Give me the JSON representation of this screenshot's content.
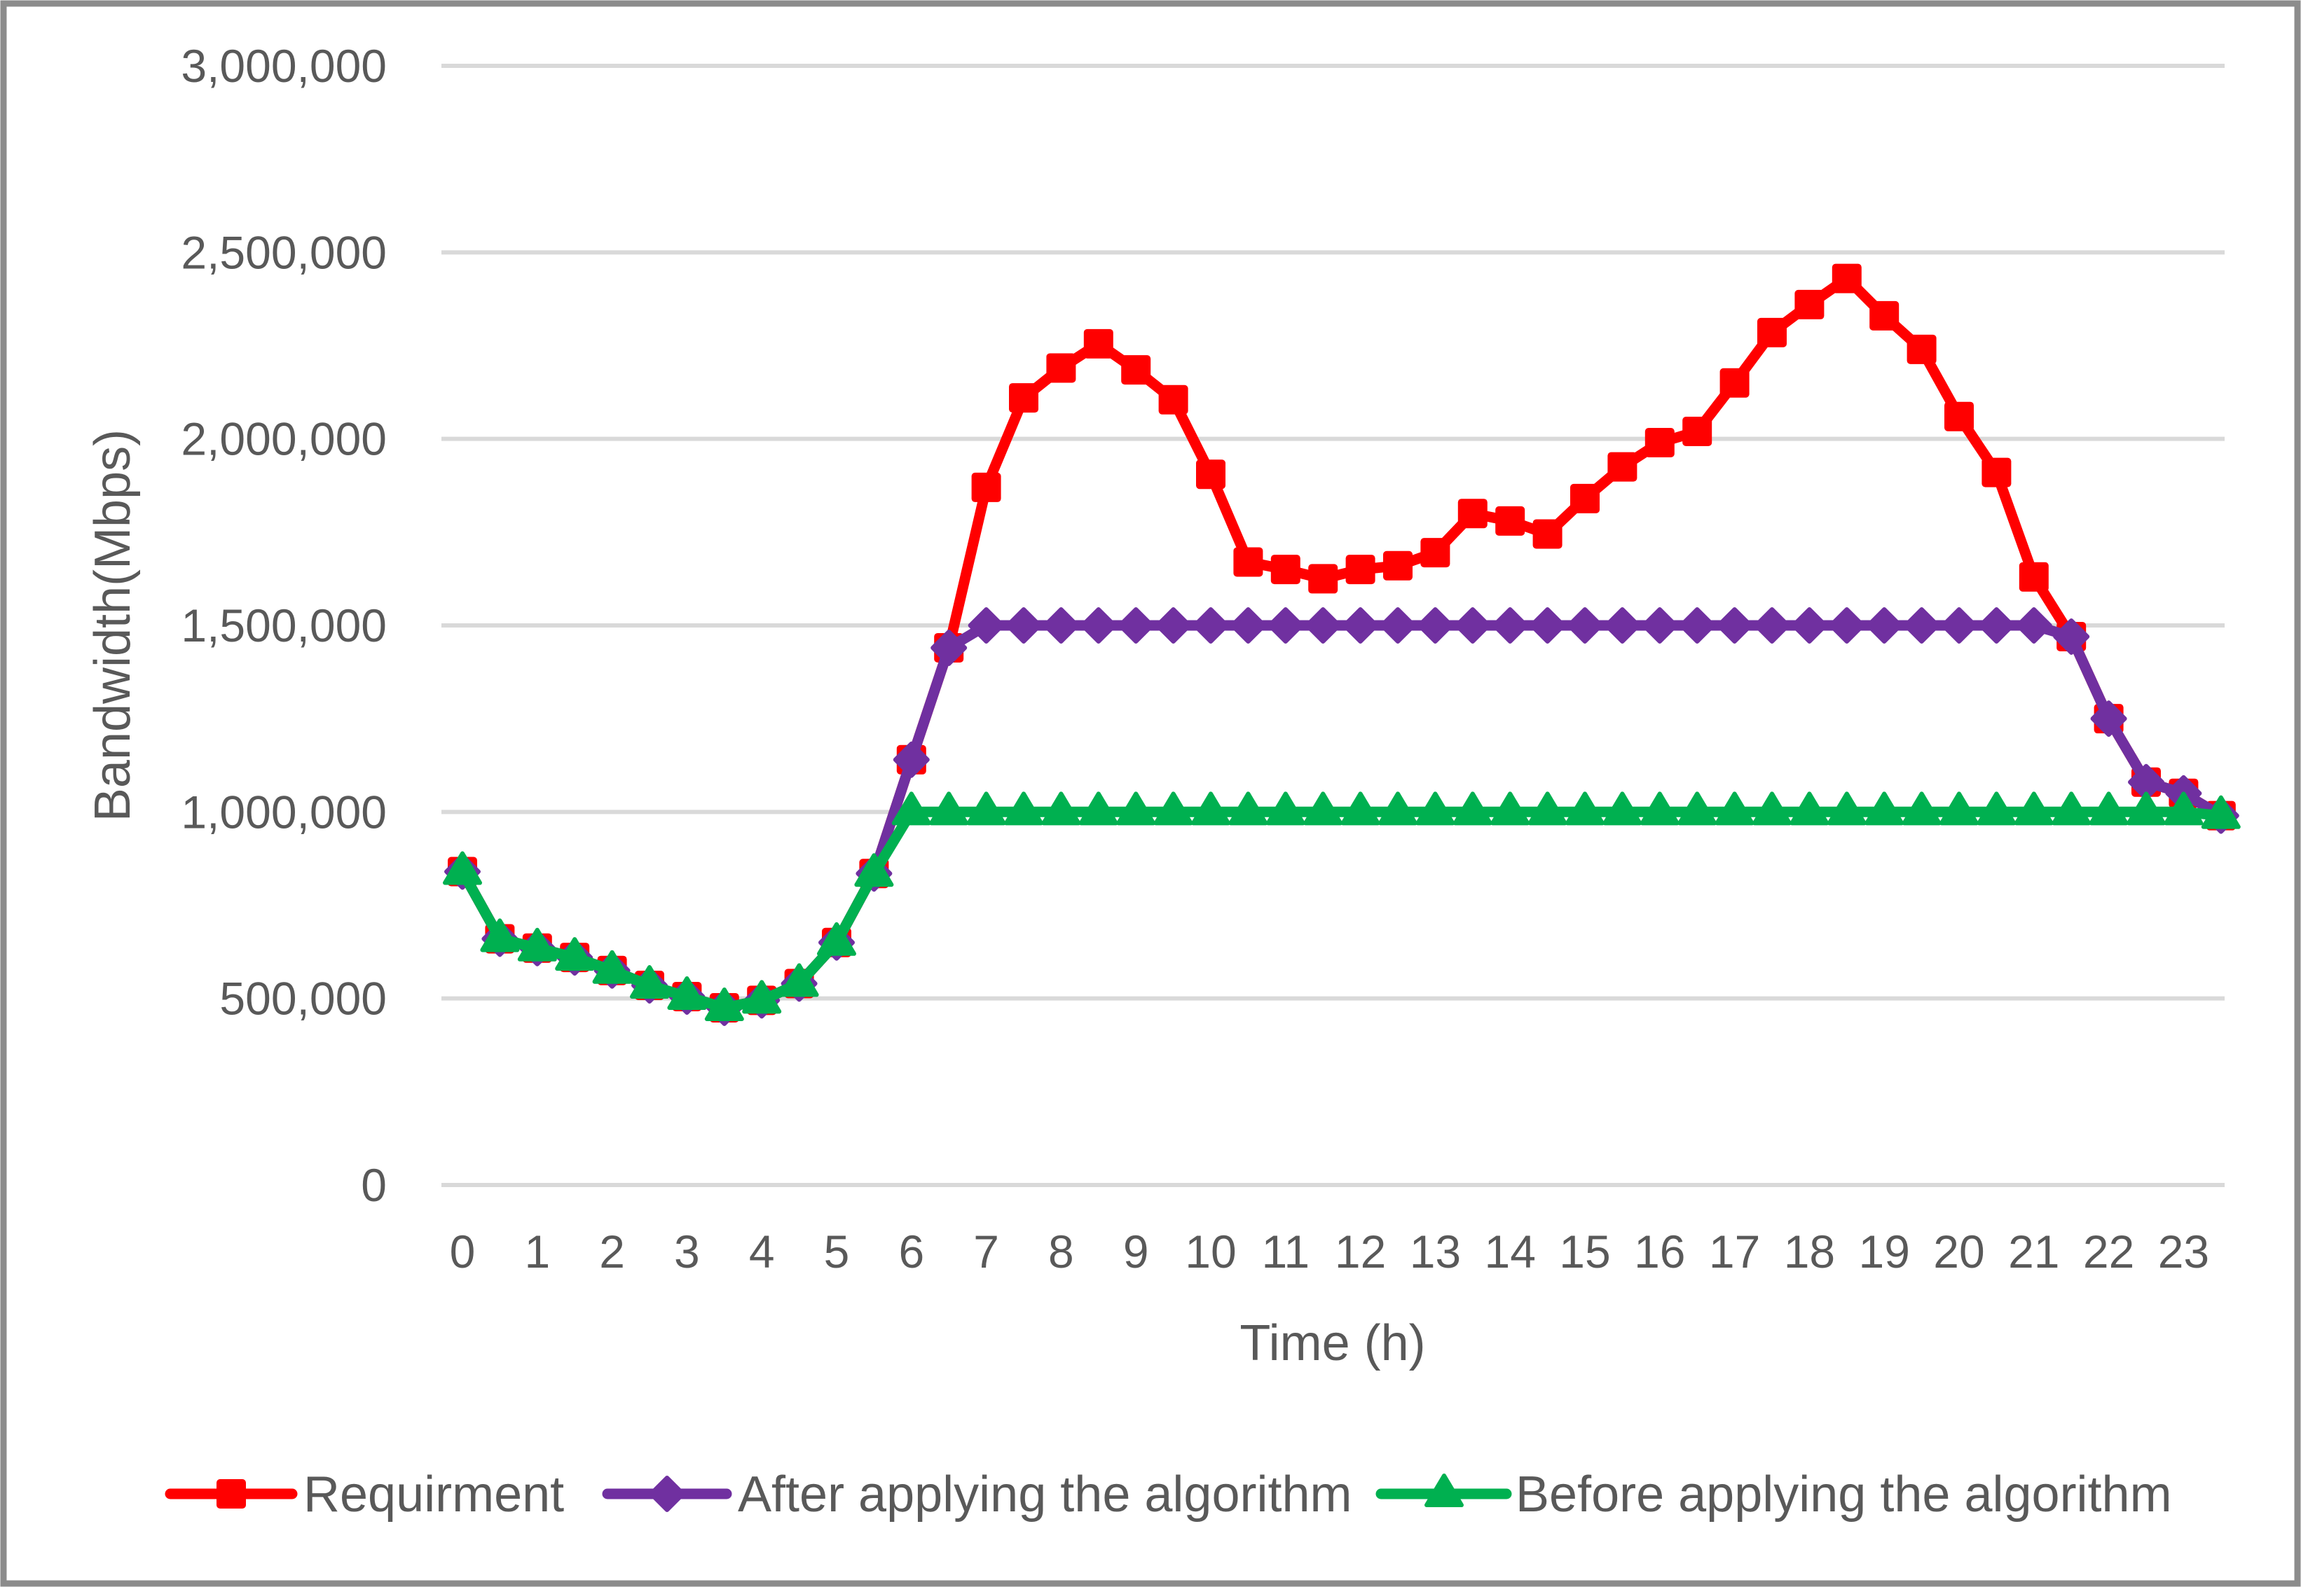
{
  "chart_data": {
    "type": "line",
    "title": "",
    "xlabel": "Time (h)",
    "ylabel": "Bandwidth(Mbps)",
    "ylim": [
      0,
      3000000
    ],
    "ytick_step": 500000,
    "ytick_labels": [
      "0",
      "500,000",
      "1,000,000",
      "1,500,000",
      "2,000,000",
      "2,500,000",
      "3,000,000"
    ],
    "xtick_labels": [
      "0",
      "1",
      "2",
      "3",
      "4",
      "5",
      "6",
      "7",
      "8",
      "9",
      "10",
      "11",
      "12",
      "13",
      "14",
      "15",
      "16",
      "17",
      "18",
      "19",
      "20",
      "21",
      "22",
      "23"
    ],
    "grid": "horizontal",
    "legend_position": "bottom",
    "x": [
      0,
      0.5,
      1,
      1.5,
      2,
      2.5,
      3,
      3.5,
      4,
      4.5,
      5,
      5.5,
      6,
      6.5,
      7,
      7.5,
      8,
      8.5,
      9,
      9.5,
      10,
      10.5,
      11,
      11.5,
      12,
      12.5,
      13,
      13.5,
      14,
      14.5,
      15,
      15.5,
      16,
      16.5,
      17,
      17.5,
      18,
      18.5,
      19,
      19.5,
      20,
      20.5,
      21,
      21.5,
      22,
      22.5,
      23,
      23.5
    ],
    "series": [
      {
        "name": "Requirment",
        "color": "#FF0000",
        "marker": "square",
        "values": [
          840000,
          660000,
          635000,
          610000,
          575000,
          535000,
          505000,
          475000,
          495000,
          540000,
          650000,
          835000,
          1140000,
          1440000,
          1870000,
          2110000,
          2190000,
          2255000,
          2185000,
          2105000,
          1905000,
          1670000,
          1650000,
          1625000,
          1650000,
          1660000,
          1695000,
          1800000,
          1780000,
          1745000,
          1840000,
          1925000,
          1990000,
          2020000,
          2150000,
          2285000,
          2360000,
          2430000,
          2330000,
          2240000,
          2060000,
          1910000,
          1630000,
          1470000,
          1250000,
          1080000,
          1050000,
          990000
        ]
      },
      {
        "name": "After applying the algorithm",
        "color": "#7030A0",
        "marker": "diamond",
        "values": [
          840000,
          660000,
          635000,
          610000,
          575000,
          535000,
          505000,
          475000,
          495000,
          540000,
          650000,
          835000,
          1140000,
          1440000,
          1500000,
          1500000,
          1500000,
          1500000,
          1500000,
          1500000,
          1500000,
          1500000,
          1500000,
          1500000,
          1500000,
          1500000,
          1500000,
          1500000,
          1500000,
          1500000,
          1500000,
          1500000,
          1500000,
          1500000,
          1500000,
          1500000,
          1500000,
          1500000,
          1500000,
          1500000,
          1500000,
          1500000,
          1500000,
          1470000,
          1250000,
          1080000,
          1050000,
          990000
        ]
      },
      {
        "name": "Before applying the algorithm",
        "color": "#00B050",
        "marker": "triangle",
        "values": [
          840000,
          660000,
          635000,
          610000,
          575000,
          535000,
          505000,
          475000,
          495000,
          540000,
          650000,
          835000,
          1000000,
          1000000,
          1000000,
          1000000,
          1000000,
          1000000,
          1000000,
          1000000,
          1000000,
          1000000,
          1000000,
          1000000,
          1000000,
          1000000,
          1000000,
          1000000,
          1000000,
          1000000,
          1000000,
          1000000,
          1000000,
          1000000,
          1000000,
          1000000,
          1000000,
          1000000,
          1000000,
          1000000,
          1000000,
          1000000,
          1000000,
          1000000,
          1000000,
          1000000,
          1000000,
          990000
        ]
      }
    ],
    "colors": {
      "gridline": "#D9D9D9",
      "tick_text": "#595959",
      "border": "#8C8C8C"
    }
  }
}
